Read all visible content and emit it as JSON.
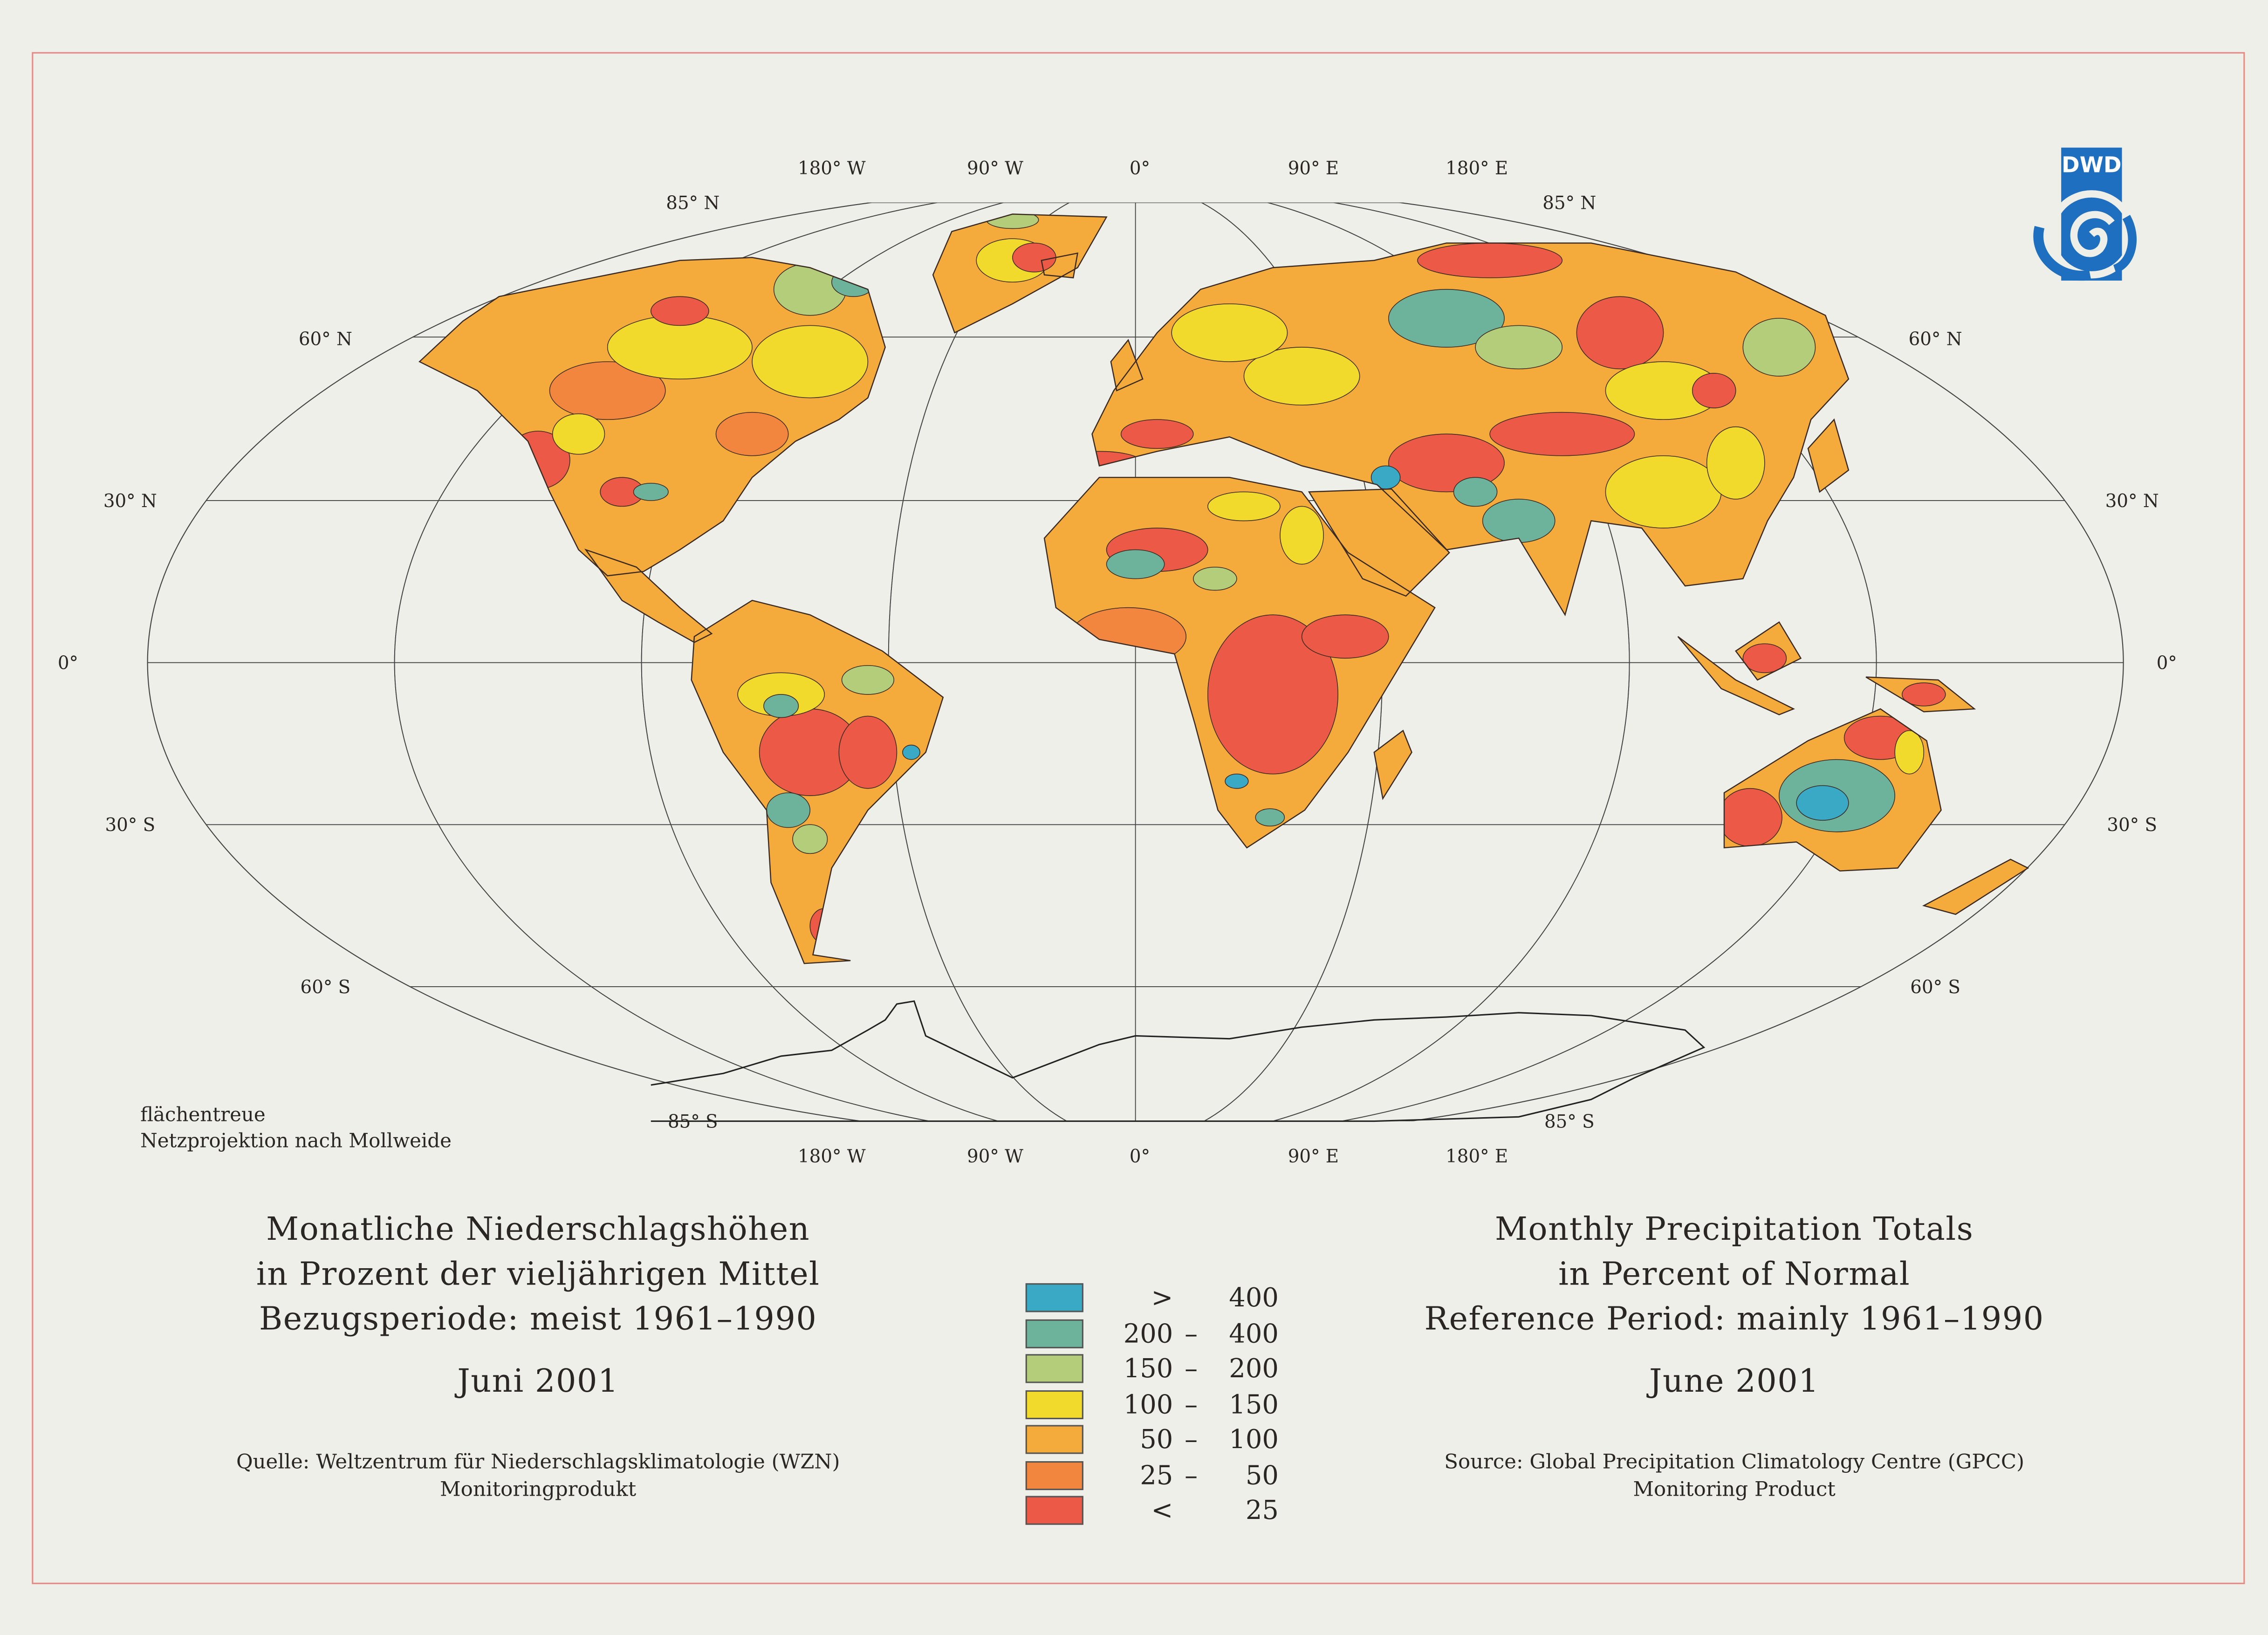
{
  "map": {
    "projection_note": [
      "flächentreue",
      "Netzprojektion nach Mollweide"
    ],
    "top_lon_labels": [
      "180° W",
      "90° W",
      "0°",
      "90° E",
      "180° E"
    ],
    "bottom_lon_labels": [
      "180° W",
      "90° W",
      "0°",
      "90° E",
      "180° E"
    ],
    "lat_labels_left": [
      "85° N",
      "60° N",
      "30° N",
      "0°",
      "30° S",
      "60° S",
      "85° S"
    ],
    "lat_labels_right": [
      "85° N",
      "60° N",
      "30° N",
      "0°",
      "30° S",
      "60° S",
      "85° S"
    ]
  },
  "logo": {
    "text": "DWD",
    "color": "#1f6fc0"
  },
  "title_de": {
    "lines": [
      "Monatliche Niederschlagshöhen",
      "in Prozent der vieljährigen Mittel",
      "Bezugsperiode: meist 1961–1990"
    ],
    "date": "Juni 2001",
    "source": [
      "Quelle: Weltzentrum für Niederschlagsklimatologie (WZN)",
      "Monitoringprodukt"
    ]
  },
  "title_en": {
    "lines": [
      "Monthly Precipitation Totals",
      "in Percent of Normal",
      "Reference Period: mainly 1961–1990"
    ],
    "date": "June 2001",
    "source": [
      "Source: Global Precipitation Climatology Centre (GPCC)",
      "Monitoring Product"
    ]
  },
  "legend": [
    {
      "lo": ">",
      "sep": "",
      "hi": "400",
      "color": "#3aa9c6"
    },
    {
      "lo": "200",
      "sep": "–",
      "hi": "400",
      "color": "#6db39c"
    },
    {
      "lo": "150",
      "sep": "–",
      "hi": "200",
      "color": "#b4cd7a"
    },
    {
      "lo": "100",
      "sep": "–",
      "hi": "150",
      "color": "#f2da2c"
    },
    {
      "lo": "50",
      "sep": "–",
      "hi": "100",
      "color": "#f5aa3c"
    },
    {
      "lo": "25",
      "sep": "–",
      "hi": "50",
      "color": "#f2863f"
    },
    {
      "lo": "<",
      "sep": "",
      "hi": "25",
      "color": "#ec5a47"
    }
  ]
}
